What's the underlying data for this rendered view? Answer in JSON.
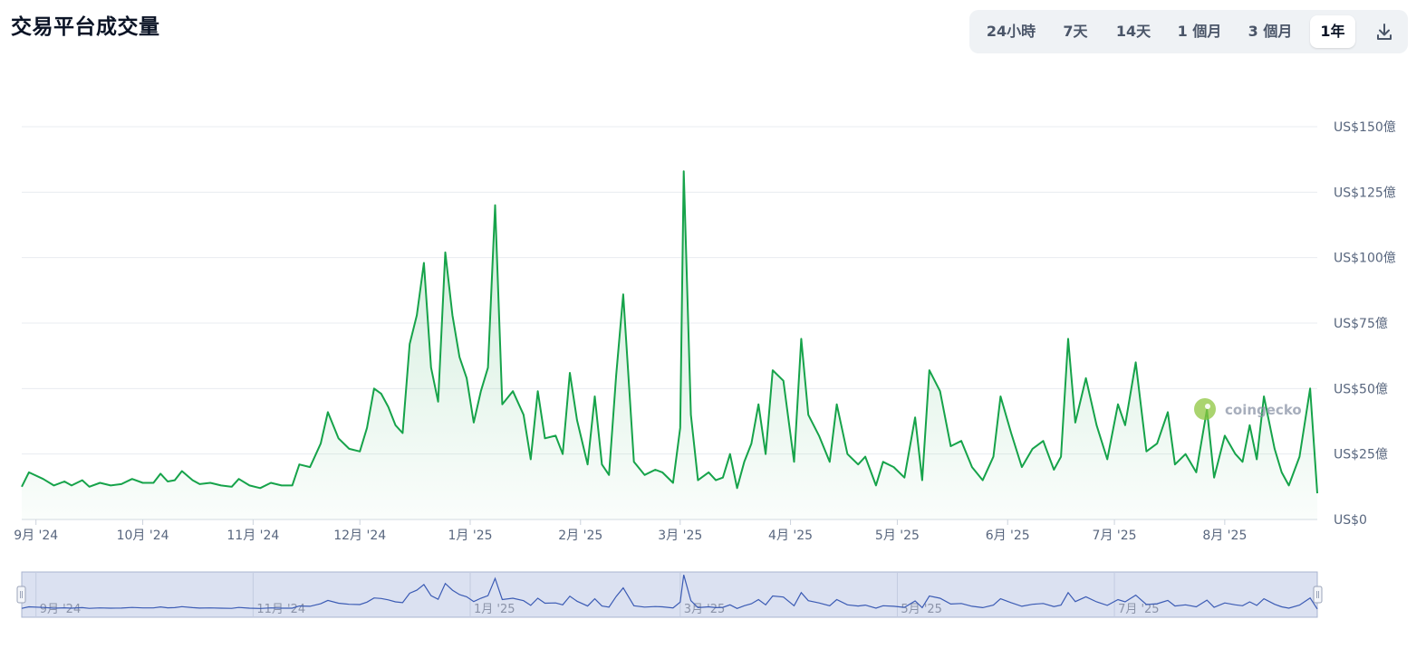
{
  "title": "交易平台成交量",
  "range_buttons": [
    {
      "label": "24小時",
      "active": false
    },
    {
      "label": "7天",
      "active": false
    },
    {
      "label": "14天",
      "active": false
    },
    {
      "label": "1 個月",
      "active": false
    },
    {
      "label": "3 個月",
      "active": false
    },
    {
      "label": "1年",
      "active": true
    }
  ],
  "icons": {
    "download": "download-icon",
    "watermark": "coingecko-logo"
  },
  "watermark_text": "coingecko",
  "colors": {
    "line": "#16a34a",
    "area_top": "#16a34a",
    "grid": "#e8ecf0",
    "axis_text": "#58667e",
    "navigator_fill": "#dbe1f1",
    "navigator_line": "#3b5bb4",
    "navigator_border": "#aab4cf"
  },
  "chart_data": {
    "type": "area",
    "title": "交易平台成交量",
    "y_unit": "US$ 億",
    "ylim": [
      0,
      150
    ],
    "y_ticks": [
      0,
      25,
      50,
      75,
      100,
      125,
      150
    ],
    "y_tick_labels": [
      "US$0",
      "US$25億",
      "US$50億",
      "US$75億",
      "US$100億",
      "US$125億",
      "US$150億"
    ],
    "x_range": [
      "2024-08-28",
      "2025-08-27"
    ],
    "x_ticks": [
      {
        "date": "2024-09-01",
        "label": "9月 '24"
      },
      {
        "date": "2024-10-01",
        "label": "10月 '24"
      },
      {
        "date": "2024-11-01",
        "label": "11月 '24"
      },
      {
        "date": "2024-12-01",
        "label": "12月 '24"
      },
      {
        "date": "2025-01-01",
        "label": "1月 '25"
      },
      {
        "date": "2025-02-01",
        "label": "2月 '25"
      },
      {
        "date": "2025-03-01",
        "label": "3月 '25"
      },
      {
        "date": "2025-04-01",
        "label": "4月 '25"
      },
      {
        "date": "2025-05-01",
        "label": "5月 '25"
      },
      {
        "date": "2025-06-01",
        "label": "6月 '25"
      },
      {
        "date": "2025-07-01",
        "label": "7月 '25"
      },
      {
        "date": "2025-08-01",
        "label": "8月 '25"
      }
    ],
    "navigator_labels": [
      "9月 '24",
      "11月 '24",
      "1月 '25",
      "3月 '25",
      "5月 '25",
      "7月 '25"
    ],
    "grid": true,
    "legend": "none",
    "series": [
      {
        "points": [
          [
            "2024-08-28",
            12.5
          ],
          [
            "2024-08-30",
            18
          ],
          [
            "2024-09-03",
            15.5
          ],
          [
            "2024-09-06",
            13
          ],
          [
            "2024-09-09",
            14.5
          ],
          [
            "2024-09-11",
            13
          ],
          [
            "2024-09-14",
            15
          ],
          [
            "2024-09-16",
            12.5
          ],
          [
            "2024-09-19",
            14
          ],
          [
            "2024-09-22",
            13
          ],
          [
            "2024-09-25",
            13.5
          ],
          [
            "2024-09-28",
            15.5
          ],
          [
            "2024-10-01",
            14
          ],
          [
            "2024-10-04",
            14
          ],
          [
            "2024-10-06",
            17.5
          ],
          [
            "2024-10-08",
            14.5
          ],
          [
            "2024-10-10",
            15
          ],
          [
            "2024-10-12",
            18.5
          ],
          [
            "2024-10-15",
            15
          ],
          [
            "2024-10-17",
            13.5
          ],
          [
            "2024-10-20",
            14
          ],
          [
            "2024-10-23",
            13
          ],
          [
            "2024-10-26",
            12.5
          ],
          [
            "2024-10-28",
            15.5
          ],
          [
            "2024-10-31",
            13
          ],
          [
            "2024-11-03",
            12
          ],
          [
            "2024-11-06",
            14
          ],
          [
            "2024-11-09",
            13
          ],
          [
            "2024-11-12",
            13
          ],
          [
            "2024-11-14",
            21
          ],
          [
            "2024-11-17",
            20
          ],
          [
            "2024-11-20",
            29
          ],
          [
            "2024-11-22",
            41
          ],
          [
            "2024-11-25",
            31
          ],
          [
            "2024-11-28",
            27
          ],
          [
            "2024-12-01",
            26
          ],
          [
            "2024-12-03",
            35
          ],
          [
            "2024-12-05",
            50
          ],
          [
            "2024-12-07",
            48
          ],
          [
            "2024-12-09",
            43
          ],
          [
            "2024-12-11",
            36
          ],
          [
            "2024-12-13",
            33
          ],
          [
            "2024-12-15",
            67
          ],
          [
            "2024-12-17",
            78
          ],
          [
            "2024-12-19",
            98
          ],
          [
            "2024-12-21",
            58
          ],
          [
            "2024-12-23",
            45
          ],
          [
            "2024-12-25",
            102
          ],
          [
            "2024-12-27",
            78
          ],
          [
            "2024-12-29",
            62
          ],
          [
            "2024-12-31",
            54
          ],
          [
            "2025-01-02",
            37
          ],
          [
            "2025-01-04",
            49
          ],
          [
            "2025-01-06",
            58
          ],
          [
            "2025-01-08",
            120
          ],
          [
            "2025-01-10",
            44
          ],
          [
            "2025-01-13",
            49
          ],
          [
            "2025-01-16",
            40
          ],
          [
            "2025-01-18",
            23
          ],
          [
            "2025-01-20",
            49
          ],
          [
            "2025-01-22",
            31
          ],
          [
            "2025-01-25",
            32
          ],
          [
            "2025-01-27",
            25
          ],
          [
            "2025-01-29",
            56
          ],
          [
            "2025-01-31",
            38
          ],
          [
            "2025-02-03",
            21
          ],
          [
            "2025-02-05",
            47
          ],
          [
            "2025-02-07",
            21
          ],
          [
            "2025-02-09",
            17
          ],
          [
            "2025-02-11",
            55
          ],
          [
            "2025-02-13",
            86
          ],
          [
            "2025-02-16",
            22
          ],
          [
            "2025-02-19",
            17
          ],
          [
            "2025-02-22",
            19
          ],
          [
            "2025-02-24",
            18
          ],
          [
            "2025-02-27",
            14
          ],
          [
            "2025-03-01",
            35
          ],
          [
            "2025-03-02",
            133
          ],
          [
            "2025-03-04",
            40
          ],
          [
            "2025-03-06",
            15
          ],
          [
            "2025-03-09",
            18
          ],
          [
            "2025-03-11",
            15
          ],
          [
            "2025-03-13",
            16
          ],
          [
            "2025-03-15",
            25
          ],
          [
            "2025-03-17",
            12
          ],
          [
            "2025-03-19",
            22
          ],
          [
            "2025-03-21",
            29
          ],
          [
            "2025-03-23",
            44
          ],
          [
            "2025-03-25",
            25
          ],
          [
            "2025-03-27",
            57
          ],
          [
            "2025-03-30",
            53
          ],
          [
            "2025-04-02",
            22
          ],
          [
            "2025-04-04",
            69
          ],
          [
            "2025-04-06",
            40
          ],
          [
            "2025-04-09",
            32
          ],
          [
            "2025-04-12",
            22
          ],
          [
            "2025-04-14",
            44
          ],
          [
            "2025-04-17",
            25
          ],
          [
            "2025-04-20",
            21
          ],
          [
            "2025-04-22",
            24
          ],
          [
            "2025-04-25",
            13
          ],
          [
            "2025-04-27",
            22
          ],
          [
            "2025-04-30",
            20
          ],
          [
            "2025-05-03",
            16
          ],
          [
            "2025-05-06",
            39
          ],
          [
            "2025-05-08",
            15
          ],
          [
            "2025-05-10",
            57
          ],
          [
            "2025-05-13",
            49
          ],
          [
            "2025-05-16",
            28
          ],
          [
            "2025-05-19",
            30
          ],
          [
            "2025-05-22",
            20
          ],
          [
            "2025-05-25",
            15
          ],
          [
            "2025-05-28",
            24
          ],
          [
            "2025-05-30",
            47
          ],
          [
            "2025-06-02",
            33
          ],
          [
            "2025-06-05",
            20
          ],
          [
            "2025-06-08",
            27
          ],
          [
            "2025-06-11",
            30
          ],
          [
            "2025-06-14",
            19
          ],
          [
            "2025-06-16",
            24
          ],
          [
            "2025-06-18",
            69
          ],
          [
            "2025-06-20",
            37
          ],
          [
            "2025-06-23",
            54
          ],
          [
            "2025-06-26",
            36
          ],
          [
            "2025-06-29",
            23
          ],
          [
            "2025-07-02",
            44
          ],
          [
            "2025-07-04",
            36
          ],
          [
            "2025-07-07",
            60
          ],
          [
            "2025-07-10",
            26
          ],
          [
            "2025-07-13",
            29
          ],
          [
            "2025-07-16",
            41
          ],
          [
            "2025-07-18",
            21
          ],
          [
            "2025-07-21",
            25
          ],
          [
            "2025-07-24",
            18
          ],
          [
            "2025-07-27",
            42
          ],
          [
            "2025-07-29",
            16
          ],
          [
            "2025-08-01",
            32
          ],
          [
            "2025-08-04",
            25
          ],
          [
            "2025-08-06",
            22
          ],
          [
            "2025-08-08",
            36
          ],
          [
            "2025-08-10",
            23
          ],
          [
            "2025-08-12",
            47
          ],
          [
            "2025-08-15",
            27
          ],
          [
            "2025-08-17",
            18
          ],
          [
            "2025-08-19",
            13
          ],
          [
            "2025-08-22",
            24
          ],
          [
            "2025-08-25",
            50
          ],
          [
            "2025-08-27",
            10
          ]
        ]
      }
    ]
  }
}
